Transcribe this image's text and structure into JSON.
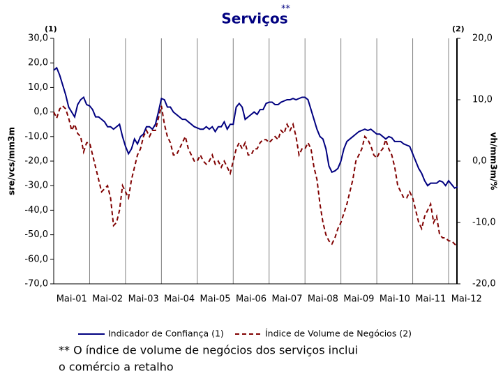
{
  "chart_data": {
    "type": "line",
    "title": "Serviços",
    "title_note": "**",
    "y_marker": "(1)",
    "y2_marker": "(2)",
    "ylabel": "sre/vcs/mm3m",
    "y2label": "vh/mm3m/%",
    "footnote": [
      "** O índice de volume de negócios dos serviços inclui",
      "o comércio a retalho"
    ],
    "categories": [
      "Mai-01",
      null,
      null,
      null,
      null,
      null,
      null,
      null,
      null,
      null,
      null,
      null,
      "Mai-02",
      null,
      null,
      null,
      null,
      null,
      null,
      null,
      null,
      null,
      null,
      null,
      "Mai-03",
      null,
      null,
      null,
      null,
      null,
      null,
      null,
      null,
      null,
      null,
      null,
      "Mai-04",
      null,
      null,
      null,
      null,
      null,
      null,
      null,
      null,
      null,
      null,
      null,
      "Mai-05",
      null,
      null,
      null,
      null,
      null,
      null,
      null,
      null,
      null,
      null,
      null,
      "Mai-06",
      null,
      null,
      null,
      null,
      null,
      null,
      null,
      null,
      null,
      null,
      null,
      "Mai-07",
      null,
      null,
      null,
      null,
      null,
      null,
      null,
      null,
      null,
      null,
      null,
      "Mai-08",
      null,
      null,
      null,
      null,
      null,
      null,
      null,
      null,
      null,
      null,
      null,
      "Mai-09",
      null,
      null,
      null,
      null,
      null,
      null,
      null,
      null,
      null,
      null,
      null,
      "Mai-10",
      null,
      null,
      null,
      null,
      null,
      null,
      null,
      null,
      null,
      null,
      null,
      "Mai-11",
      null,
      null,
      null,
      null,
      null,
      null,
      null,
      null,
      null,
      null,
      null,
      "Mai-12",
      null,
      null,
      null
    ],
    "series": [
      {
        "name": "Indicador de Confiança (1)",
        "color": "#000080",
        "axis": "y",
        "dash": false,
        "values": [
          17,
          18,
          15,
          11,
          7,
          2,
          0,
          -2,
          3,
          5,
          6,
          3,
          2.5,
          1,
          -2,
          -2,
          -3,
          -4,
          -6,
          -6,
          -7,
          -6,
          -5,
          -10,
          -14,
          -17,
          -15,
          -11,
          -13,
          -10,
          -9,
          -6,
          -6,
          -7,
          -5,
          0,
          5.5,
          5,
          2,
          2,
          0,
          -1,
          -2,
          -3,
          -3,
          -4,
          -5,
          -6,
          -6.5,
          -7,
          -7,
          -6,
          -7,
          -6,
          -8,
          -6,
          -6,
          -4,
          -7,
          -5,
          -5,
          2,
          3.5,
          2,
          -3,
          -2,
          -1,
          0,
          -1,
          1,
          1,
          3.5,
          4,
          4,
          3,
          3,
          4,
          4.5,
          5,
          5,
          5.5,
          5,
          5.5,
          6,
          6,
          5,
          1,
          -3,
          -7,
          -10,
          -11,
          -15,
          -22,
          -24.5,
          -24,
          -23,
          -20,
          -15,
          -12,
          -11,
          -10,
          -9,
          -8,
          -7.5,
          -7,
          -7.5,
          -7,
          -8,
          -9,
          -9,
          -10,
          -11,
          -10,
          -10.5,
          -12,
          -12,
          -12,
          -13,
          -13.5,
          -14,
          -17,
          -20,
          -23,
          -25,
          -28,
          -30,
          -29,
          -29,
          -29,
          -28,
          -28.5,
          -30,
          -28,
          -29.5,
          -31,
          -30.5
        ]
      },
      {
        "name": "Índice de Volume de Negócios (2)",
        "color": "#800000",
        "axis": "y2",
        "dash": true,
        "values": [
          8,
          7,
          8.5,
          9,
          8.5,
          7,
          5,
          6,
          4.5,
          4,
          1.5,
          3,
          3,
          1,
          -1,
          -3,
          -5,
          -4.5,
          -4,
          -6,
          -10.5,
          -10,
          -8,
          -4,
          -5,
          -6,
          -3,
          -1,
          1,
          2,
          4,
          5,
          4,
          5,
          5,
          7,
          9,
          6,
          4,
          3,
          1,
          1,
          2,
          3,
          4,
          2,
          1,
          0,
          0,
          1,
          0,
          -0.5,
          0,
          1,
          -0.5,
          0,
          -1,
          0,
          -1,
          -2,
          0,
          2,
          3,
          2,
          3,
          1,
          1,
          2,
          2,
          3,
          3.5,
          3.5,
          3,
          3.5,
          4,
          3.5,
          5,
          4.5,
          6,
          5,
          6,
          4,
          1,
          2,
          2,
          3,
          2,
          -1,
          -3,
          -7,
          -10,
          -12,
          -13,
          -13.5,
          -12.5,
          -11,
          -10,
          -8.5,
          -7,
          -5,
          -3,
          0,
          1,
          2,
          4,
          3.5,
          2.5,
          1,
          0.5,
          1.5,
          2,
          3.5,
          2,
          1,
          -1,
          -4,
          -5,
          -6,
          -6,
          -5,
          -6,
          -8,
          -10,
          -11,
          -9,
          -8,
          -7,
          -10,
          -9,
          -12,
          -12.5,
          -12.5,
          -13,
          -13,
          -13.5,
          -14
        ]
      }
    ],
    "ylim": [
      -70,
      30
    ],
    "yticks": [
      {
        "value": 30,
        "label": "30,0"
      },
      {
        "value": 20,
        "label": "20,0"
      },
      {
        "value": 10,
        "label": "10,0"
      },
      {
        "value": 0,
        "label": "0,0"
      },
      {
        "value": -10,
        "label": "-10,0"
      },
      {
        "value": -20,
        "label": "-20,0"
      },
      {
        "value": -30,
        "label": "-30,0"
      },
      {
        "value": -40,
        "label": "-40,0"
      },
      {
        "value": -50,
        "label": "-50,0"
      },
      {
        "value": -60,
        "label": "-60,0"
      },
      {
        "value": -70,
        "label": "-70,0"
      }
    ],
    "y2lim": [
      -20,
      20
    ],
    "y2ticks": [
      {
        "value": 20,
        "label": "20,0"
      },
      {
        "value": 10,
        "label": "10,0"
      },
      {
        "value": 0,
        "label": "0,0"
      },
      {
        "value": -10,
        "label": "-10,0"
      },
      {
        "value": -20,
        "label": "-20,0"
      }
    ],
    "grid": "x"
  }
}
